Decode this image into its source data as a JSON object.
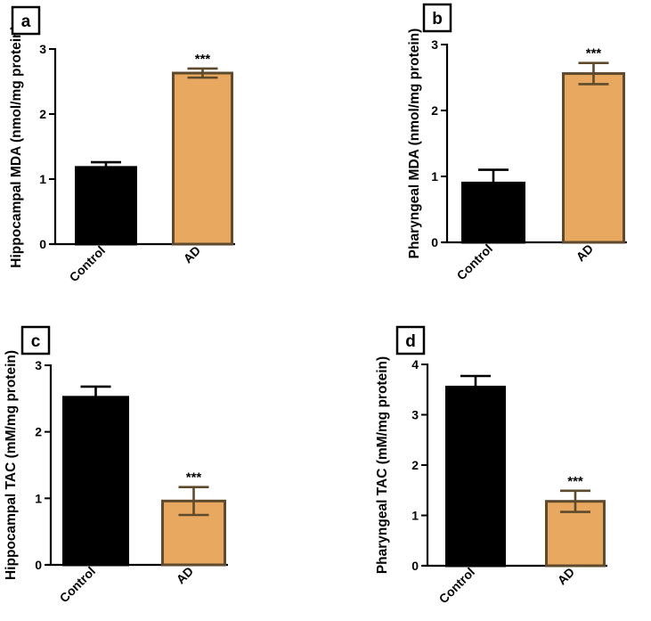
{
  "colors": {
    "control_fill": "#000000",
    "ad_fill": "#E8A85F",
    "ad_stroke": "#5E4A2C"
  },
  "chart_data": [
    {
      "panel": "a",
      "type": "bar",
      "categories": [
        "Control",
        "AD"
      ],
      "values": [
        1.18,
        2.63
      ],
      "errors": [
        0.08,
        0.07
      ],
      "significance": [
        "",
        "***"
      ],
      "ylabel": "Hippocampal MDA (nmol/mg protein)",
      "ylim": [
        0,
        3
      ],
      "yticks": [
        "0",
        "1",
        "2",
        "3"
      ]
    },
    {
      "panel": "b",
      "type": "bar",
      "categories": [
        "Control",
        "AD"
      ],
      "values": [
        0.9,
        2.56
      ],
      "errors": [
        0.2,
        0.16
      ],
      "significance": [
        "",
        "***"
      ],
      "ylabel": "Pharyngeal MDA (nmol/mg protein)",
      "ylim": [
        0,
        3
      ],
      "yticks": [
        "0",
        "1",
        "2",
        "3"
      ]
    },
    {
      "panel": "c",
      "type": "bar",
      "categories": [
        "Control",
        "AD"
      ],
      "values": [
        2.52,
        0.96
      ],
      "errors": [
        0.16,
        0.21
      ],
      "significance": [
        "",
        "***"
      ],
      "ylabel": "Hippocampal TAC (mM/mg protein)",
      "ylim": [
        0,
        3
      ],
      "yticks": [
        "0",
        "1",
        "2",
        "3"
      ]
    },
    {
      "panel": "d",
      "type": "bar",
      "categories": [
        "Control",
        "AD"
      ],
      "values": [
        3.55,
        1.28
      ],
      "errors": [
        0.22,
        0.21
      ],
      "significance": [
        "",
        "***"
      ],
      "ylabel": "Pharyngeal TAC (mM/mg protein)",
      "ylim": [
        0,
        4
      ],
      "yticks": [
        "0",
        "1",
        "2",
        "3",
        "4"
      ]
    }
  ]
}
